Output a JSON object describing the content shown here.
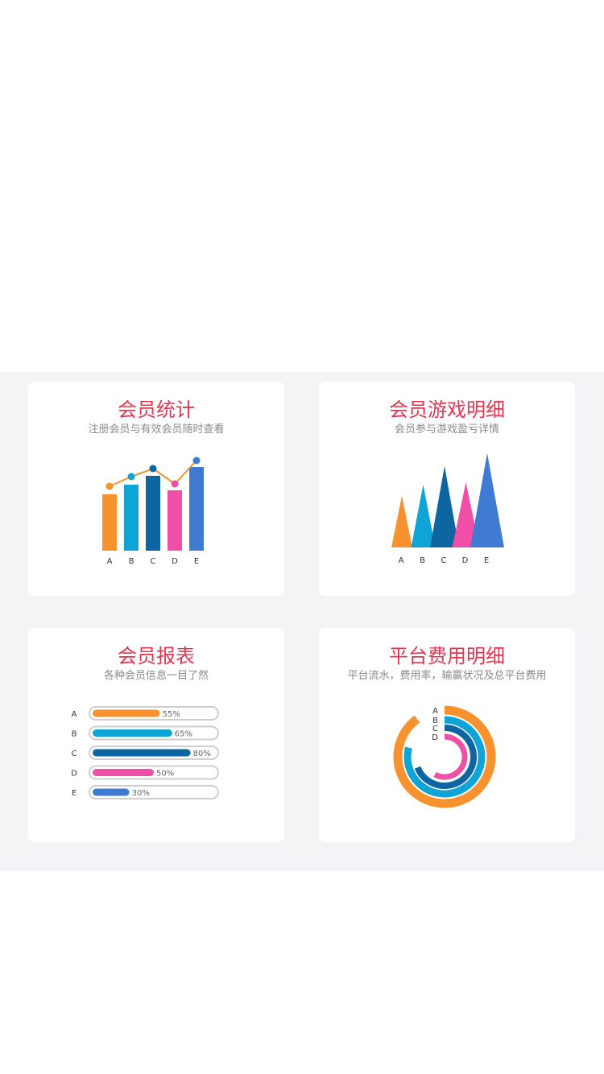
{
  "colors": {
    "title": "#e8334f",
    "subtitle": "#8a8a8a",
    "orange": "#f7922e",
    "cyan": "#0ea5d6",
    "navy": "#0d66a1",
    "pink": "#ef4fa6",
    "blue": "#3f7bd3",
    "band": "#f4f4f6"
  },
  "cards": [
    {
      "title": "会员统计",
      "subtitle": "注册会员与有效会员随时查看",
      "icon": "bar-line-chart-icon",
      "illustration": {
        "categories": [
          "A",
          "B",
          "C",
          "D",
          "E"
        ],
        "bar_values": [
          70,
          82,
          93,
          75,
          104
        ],
        "line_values": [
          80,
          92,
          102,
          83,
          112
        ]
      }
    },
    {
      "title": "会员游戏明细",
      "subtitle": "会员参与游戏盈亏详情",
      "icon": "triangle-chart-icon",
      "illustration": {
        "categories": [
          "A",
          "B",
          "C",
          "D",
          "E"
        ],
        "values": [
          64,
          78,
          101,
          81,
          117
        ]
      }
    },
    {
      "title": "会员报表",
      "subtitle": "各种会员信息一目了然",
      "icon": "progress-bars-icon",
      "illustration": {
        "rows": [
          {
            "label": "A",
            "value": 55,
            "text": "55%"
          },
          {
            "label": "B",
            "value": 65,
            "text": "65%"
          },
          {
            "label": "C",
            "value": 80,
            "text": "80%"
          },
          {
            "label": "D",
            "value": 50,
            "text": "50%"
          },
          {
            "label": "E",
            "value": 30,
            "text": "30%"
          }
        ]
      }
    },
    {
      "title": "平台费用明细",
      "subtitle": "平台流水，费用率，输赢状况及总平台费用",
      "icon": "radial-bar-chart-icon",
      "illustration": {
        "rings": [
          {
            "label": "A",
            "fraction": 0.9
          },
          {
            "label": "B",
            "fraction": 0.79
          },
          {
            "label": "C",
            "fraction": 0.69
          },
          {
            "label": "D",
            "fraction": 0.58
          }
        ]
      }
    }
  ]
}
